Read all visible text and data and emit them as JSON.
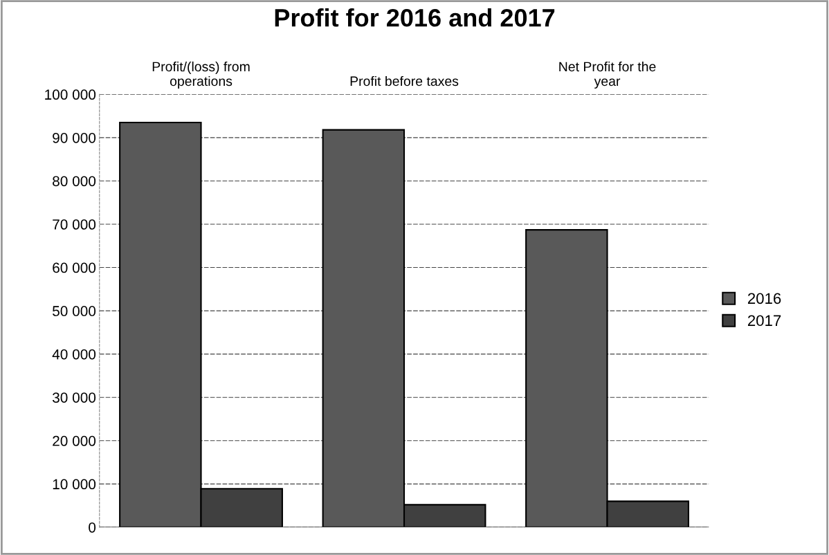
{
  "chart_data": {
    "type": "bar",
    "title": "Profit for 2016 and 2017",
    "categories": [
      "Profit/(loss) from\noperations",
      "Profit before taxes",
      "Net Profit for the\nyear"
    ],
    "series": [
      {
        "name": "2016",
        "color": "#595959",
        "values": [
          93500,
          91800,
          68700
        ]
      },
      {
        "name": "2017",
        "color": "#404040",
        "values": [
          8900,
          5200,
          6000
        ]
      }
    ],
    "ylim": [
      0,
      100000
    ],
    "yticks": [
      0,
      {
        "value": 10000,
        "label": "10 000"
      },
      {
        "value": 20000,
        "label": "20 000"
      },
      {
        "value": 30000,
        "label": "30 000"
      },
      {
        "value": 40000,
        "label": "40 000"
      },
      {
        "value": 50000,
        "label": "50 000"
      },
      {
        "value": 60000,
        "label": "60 000"
      },
      {
        "value": 70000,
        "label": "70 000"
      },
      {
        "value": 80000,
        "label": "80 000"
      },
      {
        "value": 90000,
        "label": "90 000"
      },
      {
        "value": 100000,
        "label": "100 000"
      }
    ],
    "grid": "y",
    "legend": "right"
  }
}
